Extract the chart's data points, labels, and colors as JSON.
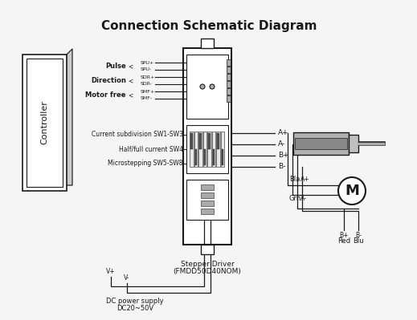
{
  "title": "Connection Schematic Diagram",
  "title_fontsize": 11,
  "bg_color": "#f5f5f5",
  "fg_color": "#1a1a1a",
  "controller_label": "Controller",
  "driver_label_line1": "Stepper Driver",
  "driver_label_line2": "(FMDD50D40NOM)",
  "signal_groups": [
    {
      "label": "Pulse",
      "pin1": "SPU+",
      "pin2": "SPU-"
    },
    {
      "label": "Direction",
      "pin1": "SDR+",
      "pin2": "SDR-"
    },
    {
      "label": "Motor free",
      "pin1": "SMF+",
      "pin2": "SMF-"
    }
  ],
  "switch_labels": [
    "Current subdivision SW1-SW3",
    "Half/full current SW4",
    "Microstepping SW5-SW8"
  ],
  "output_labels": [
    "A+",
    "A-",
    "B+",
    "B-"
  ],
  "dc_label_line1": "DC power supply",
  "dc_label_line2": "DC20~50V",
  "v_plus_label": "V+",
  "v_minus_label": "V-",
  "motor_label": "M",
  "bla_label": "Bla",
  "grn_label": "Grn",
  "red_label": "Red",
  "blu_label": "Blu",
  "a_plus_label": "A+",
  "a_minus_label": "A-",
  "b_plus_label": "B+",
  "b_minus_label": "B-"
}
